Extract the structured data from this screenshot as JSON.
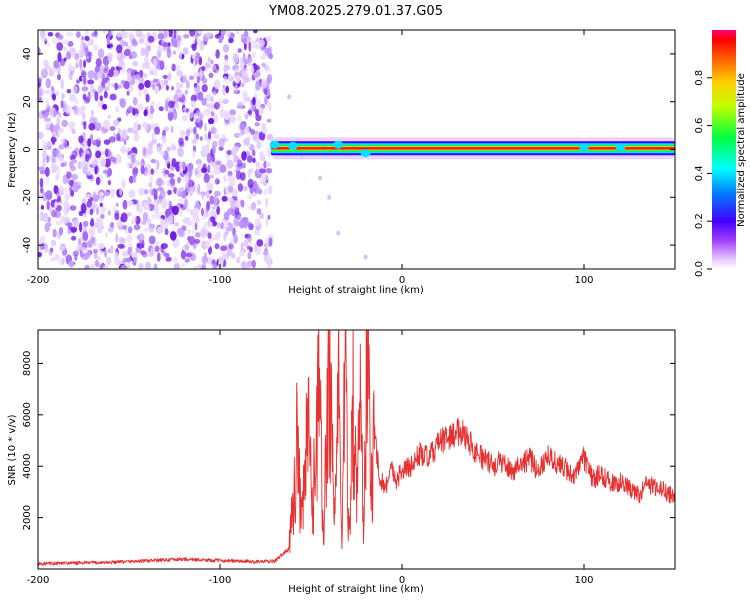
{
  "title": "YM08.2025.279.01.37.G05",
  "chart_data": [
    {
      "type": "heatmap",
      "name": "spectrogram",
      "xlabel": "Height of straight line (km)",
      "ylabel": "Frequency (Hz)",
      "xlim": [
        -200,
        150
      ],
      "ylim": [
        -50,
        50
      ],
      "xticks": [
        -200,
        -100,
        0,
        100
      ],
      "yticks": [
        -40,
        -20,
        0,
        20,
        40
      ],
      "colorbar": {
        "label": "Normalized spectral amplitude",
        "range": [
          0.0,
          1.0
        ],
        "ticks": [
          0.0,
          0.2,
          0.4,
          0.6,
          0.8
        ],
        "tick_labels": [
          "0.0",
          "0.2",
          "0.4",
          "0.6",
          "0.8"
        ]
      },
      "regions": [
        {
          "description": "scattered noise",
          "x_range": [
            -200,
            -72
          ],
          "y_range": [
            -50,
            50
          ],
          "amplitude": 0.1
        },
        {
          "description": "carrier line",
          "x_range": [
            -72,
            150
          ],
          "frequency": 0.5,
          "peak_amplitude": 1.0
        }
      ]
    },
    {
      "type": "line",
      "name": "snr",
      "xlabel": "Height of straight line (km)",
      "ylabel": "SNR (10 * v/v)",
      "xlim": [
        -200,
        150
      ],
      "ylim": [
        0,
        9300
      ],
      "xticks": [
        -200,
        -100,
        0,
        100
      ],
      "yticks": [
        2000,
        4000,
        6000,
        8000
      ],
      "series": [
        {
          "name": "SNR",
          "color": "#e83030",
          "x": [
            -200,
            -180,
            -160,
            -140,
            -120,
            -100,
            -80,
            -70,
            -62,
            -58,
            -55,
            -52,
            -49,
            -46,
            -43,
            -40,
            -37,
            -35,
            -33,
            -31,
            -29,
            -27,
            -25,
            -23,
            -21,
            -19,
            -17,
            -15,
            -12,
            -9,
            -6,
            -3,
            0,
            5,
            10,
            15,
            20,
            25,
            30,
            33,
            36,
            40,
            45,
            50,
            55,
            60,
            65,
            70,
            75,
            80,
            85,
            90,
            95,
            100,
            105,
            110,
            115,
            120,
            125,
            130,
            135,
            140,
            145,
            150
          ],
          "y": [
            200,
            230,
            260,
            320,
            380,
            330,
            280,
            300,
            800,
            4800,
            1500,
            5600,
            2200,
            7500,
            1200,
            8600,
            2000,
            7000,
            1500,
            8200,
            800,
            7200,
            2400,
            6700,
            1800,
            9300,
            3000,
            5200,
            3500,
            3200,
            3900,
            3500,
            3800,
            4000,
            4500,
            4300,
            4900,
            5100,
            5300,
            5400,
            5100,
            4600,
            4300,
            4000,
            4200,
            3800,
            4100,
            4300,
            3800,
            4500,
            4100,
            3900,
            3600,
            4300,
            3500,
            3700,
            3300,
            3400,
            3100,
            2900,
            3300,
            3200,
            3000,
            2800
          ]
        }
      ]
    }
  ]
}
